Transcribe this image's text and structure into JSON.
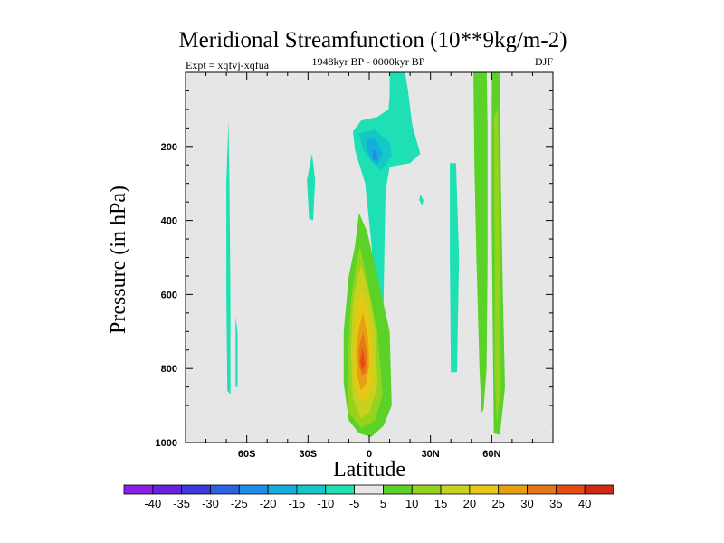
{
  "chart_data": {
    "type": "contour",
    "title": "Meridional Streamfunction (10**9kg/m-2)",
    "subtitle": "1948kyr BP - 0000kyr BP",
    "left_label": "Expt = xqfvj-xqfua",
    "right_label": "DJF",
    "xlabel": "Latitude",
    "ylabel": "Pressure (in hPa)",
    "xlim": [
      -90,
      90
    ],
    "ylim": [
      0,
      1000
    ],
    "y_inverted": true,
    "x_ticks": [
      {
        "value": -60,
        "label": "60S"
      },
      {
        "value": -30,
        "label": "30S"
      },
      {
        "value": 0,
        "label": "0"
      },
      {
        "value": 30,
        "label": "30N"
      },
      {
        "value": 60,
        "label": "60N"
      }
    ],
    "y_ticks": [
      {
        "value": 200,
        "label": "200"
      },
      {
        "value": 400,
        "label": "400"
      },
      {
        "value": 600,
        "label": "600"
      },
      {
        "value": 800,
        "label": "800"
      },
      {
        "value": 1000,
        "label": "1000"
      }
    ],
    "background_color": "#e6e6e6",
    "colorbar": {
      "levels": [
        "-40",
        "-35",
        "-30",
        "-25",
        "-20",
        "-15",
        "-10",
        "-5",
        "5",
        "10",
        "15",
        "20",
        "25",
        "30",
        "35",
        "40"
      ],
      "colors": [
        "#8a1ee6",
        "#6a20dc",
        "#3a3ade",
        "#2a64e0",
        "#1e8ee6",
        "#14aedc",
        "#14c8c8",
        "#1ee0b4",
        "#e6e6e6",
        "#5ad228",
        "#96d21e",
        "#c8d21e",
        "#e6c814",
        "#e6a014",
        "#e67814",
        "#e64b14",
        "#d22814"
      ]
    },
    "regions": [
      {
        "color": "#1ee0b4",
        "points": [
          [
            -69,
            130
          ],
          [
            -68.5,
            300
          ],
          [
            -68,
            600
          ],
          [
            -68,
            870
          ],
          [
            -69.5,
            860
          ],
          [
            -70,
            600
          ],
          [
            -70,
            300
          ]
        ]
      },
      {
        "color": "#1ee0b4",
        "points": [
          [
            -65.5,
            660
          ],
          [
            -64.5,
            700
          ],
          [
            -64.5,
            850
          ],
          [
            -65.5,
            850
          ]
        ]
      },
      {
        "color": "#1ee0b4",
        "points": [
          [
            -28,
            220
          ],
          [
            -26.5,
            290
          ],
          [
            -27.5,
            400
          ],
          [
            -29.5,
            395
          ],
          [
            -30.5,
            290
          ]
        ]
      },
      {
        "color": "#1ee0b4",
        "points": [
          [
            10,
            -20
          ],
          [
            17,
            -20
          ],
          [
            19,
            50
          ],
          [
            21,
            140
          ],
          [
            25,
            220
          ],
          [
            20,
            245
          ],
          [
            10,
            255
          ],
          [
            8,
            320
          ],
          [
            7.5,
            460
          ],
          [
            7,
            625
          ],
          [
            3,
            610
          ],
          [
            1,
            460
          ],
          [
            -2,
            300
          ],
          [
            -7,
            210
          ],
          [
            -8,
            160
          ],
          [
            -4,
            130
          ],
          [
            4,
            120
          ],
          [
            9.5,
            100
          ],
          [
            10,
            60
          ]
        ]
      },
      {
        "color": "#14c8c8",
        "points": [
          [
            -5,
            165
          ],
          [
            3,
            155
          ],
          [
            10,
            190
          ],
          [
            11,
            225
          ],
          [
            6,
            265
          ],
          [
            1,
            240
          ],
          [
            -3,
            210
          ]
        ]
      },
      {
        "color": "#14aedc",
        "points": [
          [
            -1,
            180
          ],
          [
            3,
            180
          ],
          [
            6.5,
            220
          ],
          [
            4,
            250
          ],
          [
            1,
            235
          ],
          [
            -1,
            210
          ]
        ]
      },
      {
        "color": "#1e8ee6",
        "points": [
          [
            1.5,
            210
          ],
          [
            3.5,
            210
          ],
          [
            4,
            235
          ],
          [
            2,
            238
          ]
        ]
      },
      {
        "color": "#1ee0b4",
        "points": [
          [
            25,
            330
          ],
          [
            26.5,
            345
          ],
          [
            26,
            360
          ],
          [
            24.5,
            345
          ]
        ]
      },
      {
        "color": "#1ee0b4",
        "points": [
          [
            39.5,
            245
          ],
          [
            42.5,
            245
          ],
          [
            44,
            500
          ],
          [
            43,
            810
          ],
          [
            40,
            810
          ],
          [
            39.5,
            500
          ]
        ]
      },
      {
        "color": "#5ad228",
        "points": [
          [
            -5,
            380
          ],
          [
            -1,
            430
          ],
          [
            6,
            600
          ],
          [
            10,
            700
          ],
          [
            11,
            900
          ],
          [
            7,
            955
          ],
          [
            1,
            985
          ],
          [
            -5,
            975
          ],
          [
            -10,
            940
          ],
          [
            -12.5,
            840
          ],
          [
            -12.5,
            700
          ],
          [
            -10,
            550
          ],
          [
            -7,
            470
          ]
        ]
      },
      {
        "color": "#96d21e",
        "points": [
          [
            -4.5,
            470
          ],
          [
            -1,
            560
          ],
          [
            4,
            700
          ],
          [
            6.5,
            870
          ],
          [
            3,
            940
          ],
          [
            -4,
            960
          ],
          [
            -10,
            920
          ],
          [
            -10.5,
            760
          ],
          [
            -9,
            620
          ],
          [
            -6.5,
            520
          ]
        ]
      },
      {
        "color": "#c8d21e",
        "points": [
          [
            -4,
            520
          ],
          [
            0,
            600
          ],
          [
            3,
            700
          ],
          [
            4,
            850
          ],
          [
            0,
            920
          ],
          [
            -4,
            935
          ],
          [
            -8,
            880
          ],
          [
            -9,
            760
          ],
          [
            -8,
            620
          ],
          [
            -6,
            560
          ]
        ]
      },
      {
        "color": "#e6c814",
        "points": [
          [
            -3.5,
            590
          ],
          [
            0,
            660
          ],
          [
            1.5,
            740
          ],
          [
            1.5,
            840
          ],
          [
            -2,
            890
          ],
          [
            -6,
            880
          ],
          [
            -8,
            800
          ],
          [
            -7,
            680
          ],
          [
            -5.5,
            620
          ]
        ]
      },
      {
        "color": "#e6a014",
        "points": [
          [
            -3,
            650
          ],
          [
            -0.5,
            720
          ],
          [
            0,
            790
          ],
          [
            -1.5,
            840
          ],
          [
            -4,
            860
          ],
          [
            -6,
            820
          ],
          [
            -6.5,
            750
          ],
          [
            -5,
            690
          ]
        ]
      },
      {
        "color": "#e67814",
        "points": [
          [
            -3,
            700
          ],
          [
            -1,
            760
          ],
          [
            -1.5,
            810
          ],
          [
            -3.5,
            820
          ],
          [
            -5,
            790
          ],
          [
            -5,
            740
          ]
        ]
      },
      {
        "color": "#e64b14",
        "points": [
          [
            -3.2,
            745
          ],
          [
            -2,
            790
          ],
          [
            -3.5,
            805
          ],
          [
            -4.5,
            780
          ]
        ]
      },
      {
        "color": "#5ad228",
        "points": [
          [
            51,
            -20
          ],
          [
            57.5,
            -20
          ],
          [
            58,
            150
          ],
          [
            58,
            500
          ],
          [
            57.5,
            800
          ],
          [
            56,
            910
          ],
          [
            55,
            920
          ],
          [
            54,
            800
          ],
          [
            52.5,
            500
          ],
          [
            51.5,
            250
          ]
        ]
      },
      {
        "color": "#5ad228",
        "points": [
          [
            60,
            -20
          ],
          [
            64,
            -20
          ],
          [
            64.5,
            300
          ],
          [
            65.5,
            600
          ],
          [
            66.5,
            850
          ],
          [
            64,
            980
          ],
          [
            61,
            975
          ],
          [
            60.5,
            700
          ],
          [
            60,
            400
          ]
        ]
      },
      {
        "color": "#96d21e",
        "points": [
          [
            61,
            120
          ],
          [
            63,
            100
          ],
          [
            63.5,
            300
          ],
          [
            64,
            600
          ],
          [
            64.5,
            850
          ],
          [
            62.5,
            950
          ],
          [
            61.5,
            800
          ],
          [
            61.5,
            500
          ]
        ]
      },
      {
        "color": "#e6e6e6",
        "points": [
          [
            58,
            -20
          ],
          [
            60,
            -20
          ],
          [
            60,
            70
          ],
          [
            59,
            100
          ],
          [
            58,
            70
          ]
        ]
      }
    ]
  }
}
